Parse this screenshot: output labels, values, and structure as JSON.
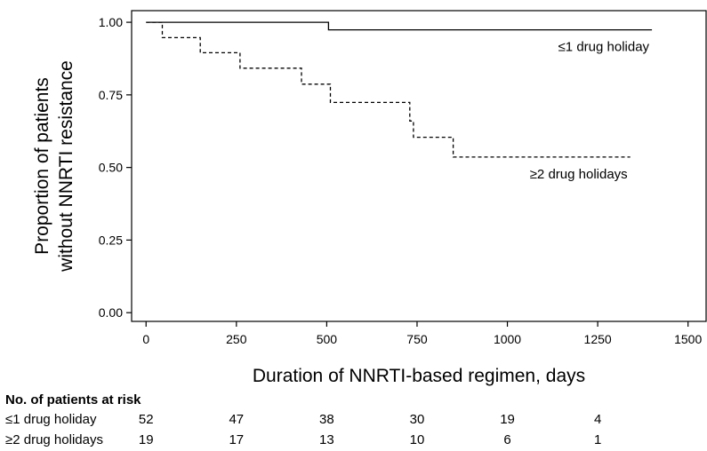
{
  "chart_data": {
    "type": "line",
    "xlabel": "Duration of NNRTI-based regimen, days",
    "ylabel_lines": [
      "Proportion of patients",
      "without NNRTI resistance"
    ],
    "xlim": [
      -40,
      1550
    ],
    "ylim": [
      -0.03,
      1.04
    ],
    "x_ticks": [
      0,
      250,
      500,
      750,
      1000,
      1250,
      1500
    ],
    "y_ticks": [
      "0.00",
      "0.25",
      "0.50",
      "0.75",
      "1.00"
    ],
    "y_tick_values": [
      0,
      0.25,
      0.5,
      0.75,
      1.0
    ],
    "grid": false,
    "series": [
      {
        "name": "≤1 drug holiday",
        "style": "solid",
        "x": [
          0,
          505,
          505,
          1400
        ],
        "y": [
          1.0,
          1.0,
          0.974,
          0.974
        ]
      },
      {
        "name": "≥2 drug holidays",
        "style": "dashed",
        "x": [
          0,
          45,
          45,
          150,
          150,
          260,
          260,
          430,
          430,
          510,
          510,
          730,
          730,
          740,
          740,
          850,
          850,
          1340
        ],
        "y": [
          1.0,
          1.0,
          0.947,
          0.947,
          0.895,
          0.895,
          0.842,
          0.842,
          0.787,
          0.787,
          0.724,
          0.724,
          0.66,
          0.66,
          0.604,
          0.604,
          0.536,
          0.536
        ]
      }
    ]
  },
  "risk_table": {
    "title": "No. of patients at risk",
    "columns_x": [
      0,
      250,
      500,
      750,
      1000,
      1250
    ],
    "rows": [
      {
        "label": "≤1 drug holiday",
        "values": [
          "52",
          "47",
          "38",
          "30",
          "19",
          "4"
        ]
      },
      {
        "label": "≥2 drug holidays",
        "values": [
          "19",
          "17",
          "13",
          "10",
          "6",
          "1"
        ]
      }
    ]
  },
  "colors": {
    "line": "#000000",
    "background": "#ffffff"
  }
}
